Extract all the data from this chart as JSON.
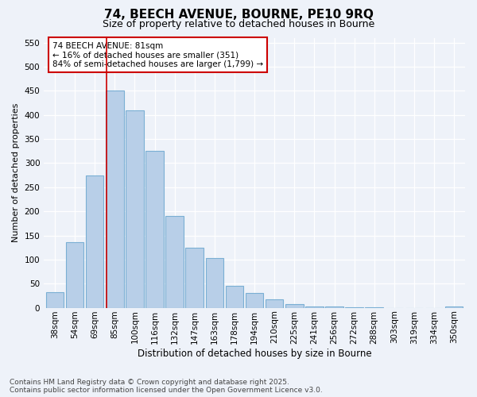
{
  "title1": "74, BEECH AVENUE, BOURNE, PE10 9RQ",
  "title2": "Size of property relative to detached houses in Bourne",
  "xlabel": "Distribution of detached houses by size in Bourne",
  "ylabel": "Number of detached properties",
  "categories": [
    "38sqm",
    "54sqm",
    "69sqm",
    "85sqm",
    "100sqm",
    "116sqm",
    "132sqm",
    "147sqm",
    "163sqm",
    "178sqm",
    "194sqm",
    "210sqm",
    "225sqm",
    "241sqm",
    "256sqm",
    "272sqm",
    "288sqm",
    "303sqm",
    "319sqm",
    "334sqm",
    "350sqm"
  ],
  "values": [
    33,
    136,
    275,
    450,
    410,
    325,
    190,
    125,
    103,
    45,
    30,
    18,
    7,
    2,
    2,
    1,
    1,
    0,
    0,
    0,
    3
  ],
  "bar_color": "#b8cfe8",
  "bar_edge_color": "#7aafd4",
  "annotation_title": "74 BEECH AVENUE: 81sqm",
  "annotation_line1": "← 16% of detached houses are smaller (351)",
  "annotation_line2": "84% of semi-detached houses are larger (1,799) →",
  "annotation_box_color": "#ffffff",
  "annotation_box_edge": "#cc0000",
  "vline_color": "#cc0000",
  "vline_pos": 2.575,
  "ylim": [
    0,
    560
  ],
  "yticks": [
    0,
    50,
    100,
    150,
    200,
    250,
    300,
    350,
    400,
    450,
    500,
    550
  ],
  "footer1": "Contains HM Land Registry data © Crown copyright and database right 2025.",
  "footer2": "Contains public sector information licensed under the Open Government Licence v3.0.",
  "bg_color": "#eef2f9",
  "plot_bg_color": "#eef2f9",
  "title1_fontsize": 11,
  "title2_fontsize": 9,
  "xlabel_fontsize": 8.5,
  "ylabel_fontsize": 8,
  "tick_fontsize": 7.5,
  "ann_fontsize": 7.5,
  "footer_fontsize": 6.5
}
